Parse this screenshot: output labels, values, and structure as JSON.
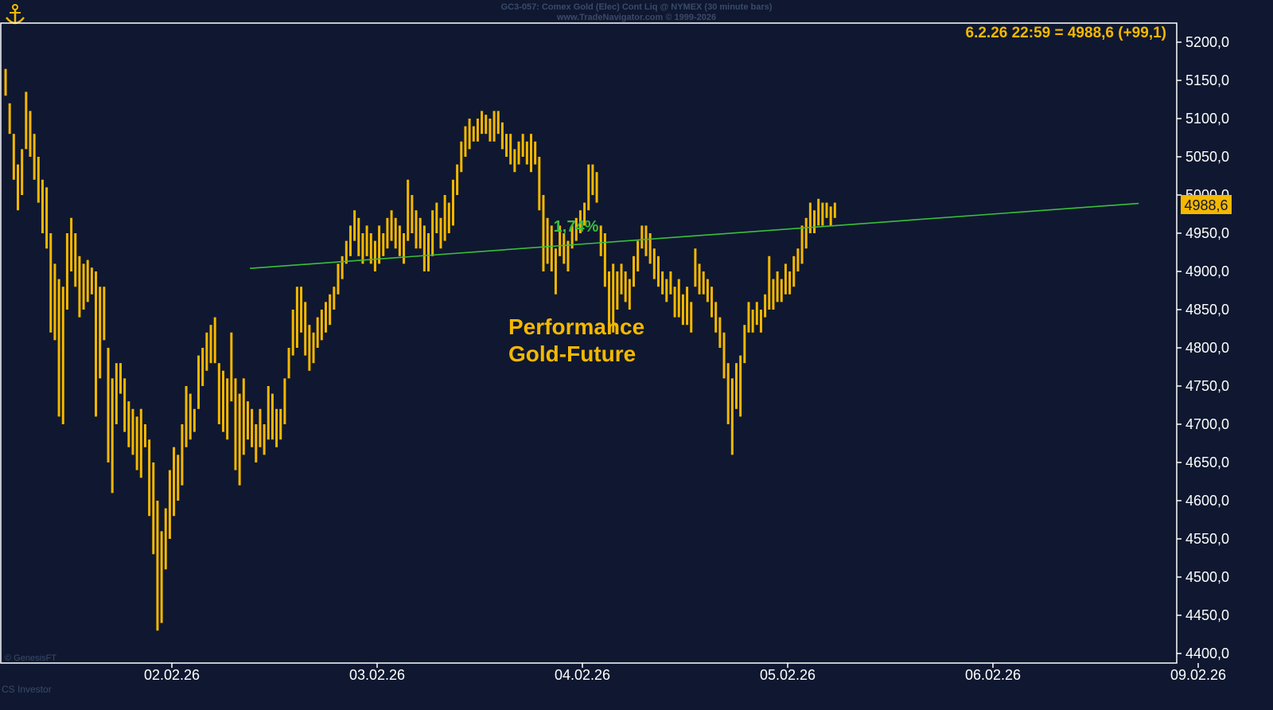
{
  "header": {
    "title": "GC3-057: Comex Gold (Elec) Cont Liq @ NYMEX (30 minute bars)",
    "subtitle": "www.TradeNavigator.com © 1999-2026"
  },
  "footer": {
    "watermark": "© GenesisFT",
    "brand": "CS Investor"
  },
  "colors": {
    "background": "#0f1830",
    "bars": "#f5b800",
    "trendline": "#3bbf3b",
    "axis": "#ffffff",
    "text": "#f5b800"
  },
  "chart_data": {
    "type": "ohlc",
    "title": "Performance Gold-Future",
    "title_lines": [
      "Performance",
      "Gold-Future"
    ],
    "last_label": "6.2.26 22:59 = 4988,6 (+99,1)",
    "last_value": 4988.6,
    "last_value_label": "4988,6",
    "ylim": [
      4400,
      5200
    ],
    "y_ticks": [
      4400,
      4450,
      4500,
      4550,
      4600,
      4650,
      4700,
      4750,
      4800,
      4850,
      4900,
      4950,
      5000,
      5050,
      5100,
      5150,
      5200
    ],
    "y_tick_labels": [
      "4400,0",
      "4450,0",
      "4500,0",
      "4550,0",
      "4600,0",
      "4650,0",
      "4700,0",
      "4750,0",
      "4800,0",
      "4850,0",
      "4900,0",
      "4950,0",
      "5000,0",
      "5050,0",
      "5100,0",
      "5150,0",
      "5200,0"
    ],
    "x_ticks": [
      "02.02.26",
      "03.02.26",
      "04.02.26",
      "05.02.26",
      "06.02.26",
      "09.02.26"
    ],
    "trendline": {
      "label": "1,74%",
      "start": {
        "x_day": 0.38,
        "value": 4904
      },
      "end": {
        "x_day": 4.71,
        "value": 4989
      }
    },
    "x_day_note_hidden": null,
    "bars": [
      [
        -0.81,
        5165,
        5130
      ],
      [
        -0.79,
        5120,
        5080
      ],
      [
        -0.77,
        5080,
        5020
      ],
      [
        -0.75,
        5040,
        4980
      ],
      [
        -0.73,
        5060,
        5000
      ],
      [
        -0.71,
        5135,
        5060
      ],
      [
        -0.69,
        5110,
        5050
      ],
      [
        -0.67,
        5080,
        5020
      ],
      [
        -0.65,
        5050,
        4990
      ],
      [
        -0.63,
        5020,
        4950
      ],
      [
        -0.61,
        5010,
        4930
      ],
      [
        -0.59,
        4950,
        4820
      ],
      [
        -0.57,
        4910,
        4810
      ],
      [
        -0.55,
        4890,
        4710
      ],
      [
        -0.53,
        4880,
        4700
      ],
      [
        -0.51,
        4950,
        4850
      ],
      [
        -0.49,
        4970,
        4900
      ],
      [
        -0.47,
        4950,
        4880
      ],
      [
        -0.45,
        4920,
        4840
      ],
      [
        -0.43,
        4910,
        4850
      ],
      [
        -0.41,
        4915,
        4860
      ],
      [
        -0.39,
        4905,
        4870
      ],
      [
        -0.37,
        4900,
        4710
      ],
      [
        -0.35,
        4880,
        4760
      ],
      [
        -0.33,
        4880,
        4810
      ],
      [
        -0.31,
        4800,
        4650
      ],
      [
        -0.29,
        4760,
        4610
      ],
      [
        -0.27,
        4780,
        4700
      ],
      [
        -0.25,
        4780,
        4740
      ],
      [
        -0.23,
        4760,
        4690
      ],
      [
        -0.21,
        4730,
        4670
      ],
      [
        -0.19,
        4720,
        4660
      ],
      [
        -0.17,
        4710,
        4640
      ],
      [
        -0.15,
        4720,
        4630
      ],
      [
        -0.13,
        4700,
        4670
      ],
      [
        -0.11,
        4680,
        4580
      ],
      [
        -0.09,
        4650,
        4530
      ],
      [
        -0.07,
        4600,
        4430
      ],
      [
        -0.05,
        4560,
        4440
      ],
      [
        -0.03,
        4590,
        4510
      ],
      [
        -0.01,
        4640,
        4550
      ],
      [
        0.01,
        4670,
        4580
      ],
      [
        0.03,
        4660,
        4600
      ],
      [
        0.05,
        4700,
        4620
      ],
      [
        0.07,
        4750,
        4670
      ],
      [
        0.09,
        4740,
        4680
      ],
      [
        0.11,
        4720,
        4690
      ],
      [
        0.13,
        4790,
        4720
      ],
      [
        0.15,
        4800,
        4750
      ],
      [
        0.17,
        4820,
        4770
      ],
      [
        0.19,
        4830,
        4780
      ],
      [
        0.21,
        4840,
        4780
      ],
      [
        0.23,
        4780,
        4700
      ],
      [
        0.25,
        4770,
        4690
      ],
      [
        0.27,
        4760,
        4680
      ],
      [
        0.29,
        4820,
        4730
      ],
      [
        0.31,
        4760,
        4640
      ],
      [
        0.33,
        4740,
        4620
      ],
      [
        0.35,
        4760,
        4660
      ],
      [
        0.37,
        4730,
        4680
      ],
      [
        0.39,
        4720,
        4670
      ],
      [
        0.41,
        4700,
        4650
      ],
      [
        0.43,
        4720,
        4670
      ],
      [
        0.45,
        4700,
        4660
      ],
      [
        0.47,
        4750,
        4680
      ],
      [
        0.49,
        4740,
        4680
      ],
      [
        0.51,
        4720,
        4670
      ],
      [
        0.53,
        4720,
        4680
      ],
      [
        0.55,
        4760,
        4700
      ],
      [
        0.57,
        4800,
        4760
      ],
      [
        0.59,
        4850,
        4790
      ],
      [
        0.61,
        4880,
        4800
      ],
      [
        0.63,
        4880,
        4820
      ],
      [
        0.65,
        4860,
        4790
      ],
      [
        0.67,
        4830,
        4770
      ],
      [
        0.69,
        4820,
        4780
      ],
      [
        0.71,
        4840,
        4800
      ],
      [
        0.73,
        4850,
        4810
      ],
      [
        0.75,
        4860,
        4820
      ],
      [
        0.77,
        4870,
        4830
      ],
      [
        0.79,
        4880,
        4850
      ],
      [
        0.81,
        4910,
        4870
      ],
      [
        0.83,
        4920,
        4890
      ],
      [
        0.85,
        4940,
        4910
      ],
      [
        0.87,
        4960,
        4920
      ],
      [
        0.89,
        4980,
        4940
      ],
      [
        0.91,
        4970,
        4920
      ],
      [
        0.93,
        4950,
        4910
      ],
      [
        0.95,
        4960,
        4920
      ],
      [
        0.97,
        4950,
        4910
      ],
      [
        0.99,
        4940,
        4900
      ],
      [
        1.01,
        4960,
        4910
      ],
      [
        1.03,
        4950,
        4920
      ],
      [
        1.05,
        4970,
        4930
      ],
      [
        1.07,
        4980,
        4940
      ],
      [
        1.09,
        4970,
        4930
      ],
      [
        1.11,
        4960,
        4920
      ],
      [
        1.13,
        4950,
        4910
      ],
      [
        1.15,
        5020,
        4940
      ],
      [
        1.17,
        5000,
        4950
      ],
      [
        1.19,
        4980,
        4930
      ],
      [
        1.21,
        4970,
        4930
      ],
      [
        1.23,
        4960,
        4900
      ],
      [
        1.25,
        4950,
        4900
      ],
      [
        1.27,
        4980,
        4920
      ],
      [
        1.29,
        4990,
        4950
      ],
      [
        1.31,
        4970,
        4930
      ],
      [
        1.33,
        5000,
        4940
      ],
      [
        1.35,
        4990,
        4950
      ],
      [
        1.37,
        5020,
        4960
      ],
      [
        1.39,
        5040,
        5000
      ],
      [
        1.41,
        5070,
        5030
      ],
      [
        1.43,
        5090,
        5050
      ],
      [
        1.45,
        5100,
        5060
      ],
      [
        1.47,
        5090,
        5070
      ],
      [
        1.49,
        5100,
        5070
      ],
      [
        1.51,
        5110,
        5080
      ],
      [
        1.53,
        5105,
        5080
      ],
      [
        1.55,
        5100,
        5070
      ],
      [
        1.57,
        5110,
        5070
      ],
      [
        1.59,
        5110,
        5080
      ],
      [
        1.61,
        5095,
        5060
      ],
      [
        1.63,
        5080,
        5050
      ],
      [
        1.65,
        5080,
        5040
      ],
      [
        1.67,
        5060,
        5030
      ],
      [
        1.69,
        5070,
        5040
      ],
      [
        1.71,
        5080,
        5050
      ],
      [
        1.73,
        5070,
        5040
      ],
      [
        1.75,
        5080,
        5030
      ],
      [
        1.77,
        5070,
        5040
      ],
      [
        1.79,
        5050,
        4980
      ],
      [
        1.81,
        5000,
        4900
      ],
      [
        1.83,
        4970,
        4910
      ],
      [
        1.85,
        4960,
        4900
      ],
      [
        1.87,
        4930,
        4870
      ],
      [
        1.89,
        4960,
        4920
      ],
      [
        1.91,
        4950,
        4910
      ],
      [
        1.93,
        4940,
        4900
      ],
      [
        1.95,
        4960,
        4930
      ],
      [
        1.97,
        4970,
        4940
      ],
      [
        1.99,
        4980,
        4950
      ],
      [
        2.01,
        4990,
        4960
      ],
      [
        2.03,
        5040,
        4980
      ],
      [
        2.05,
        5040,
        5000
      ],
      [
        2.07,
        5030,
        4990
      ],
      [
        2.09,
        4960,
        4920
      ],
      [
        2.11,
        4950,
        4880
      ],
      [
        2.13,
        4900,
        4820
      ],
      [
        2.15,
        4910,
        4820
      ],
      [
        2.17,
        4900,
        4850
      ],
      [
        2.19,
        4910,
        4870
      ],
      [
        2.21,
        4900,
        4860
      ],
      [
        2.23,
        4890,
        4850
      ],
      [
        2.25,
        4920,
        4880
      ],
      [
        2.27,
        4940,
        4900
      ],
      [
        2.29,
        4960,
        4930
      ],
      [
        2.31,
        4960,
        4920
      ],
      [
        2.33,
        4950,
        4910
      ],
      [
        2.35,
        4930,
        4890
      ],
      [
        2.37,
        4920,
        4880
      ],
      [
        2.39,
        4900,
        4870
      ],
      [
        2.41,
        4890,
        4860
      ],
      [
        2.43,
        4900,
        4870
      ],
      [
        2.45,
        4880,
        4840
      ],
      [
        2.47,
        4890,
        4840
      ],
      [
        2.49,
        4870,
        4830
      ],
      [
        2.51,
        4880,
        4830
      ],
      [
        2.53,
        4860,
        4820
      ],
      [
        2.55,
        4930,
        4880
      ],
      [
        2.57,
        4910,
        4870
      ],
      [
        2.59,
        4900,
        4870
      ],
      [
        2.61,
        4890,
        4860
      ],
      [
        2.63,
        4880,
        4840
      ],
      [
        2.65,
        4860,
        4820
      ],
      [
        2.67,
        4840,
        4800
      ],
      [
        2.69,
        4820,
        4760
      ],
      [
        2.71,
        4780,
        4700
      ],
      [
        2.73,
        4760,
        4660
      ],
      [
        2.75,
        4780,
        4720
      ],
      [
        2.77,
        4790,
        4710
      ],
      [
        2.79,
        4830,
        4780
      ],
      [
        2.81,
        4860,
        4820
      ],
      [
        2.83,
        4850,
        4820
      ],
      [
        2.85,
        4860,
        4830
      ],
      [
        2.87,
        4850,
        4820
      ],
      [
        2.89,
        4870,
        4840
      ],
      [
        2.91,
        4920,
        4850
      ],
      [
        2.93,
        4890,
        4850
      ],
      [
        2.95,
        4900,
        4860
      ],
      [
        2.97,
        4890,
        4860
      ],
      [
        2.99,
        4910,
        4870
      ],
      [
        3.01,
        4900,
        4870
      ],
      [
        3.03,
        4920,
        4880
      ],
      [
        3.05,
        4930,
        4900
      ],
      [
        3.07,
        4960,
        4910
      ],
      [
        3.09,
        4970,
        4930
      ],
      [
        3.11,
        4990,
        4950
      ],
      [
        3.13,
        4980,
        4950
      ],
      [
        3.15,
        4995,
        4960
      ],
      [
        3.17,
        4990,
        4960
      ],
      [
        3.19,
        4990,
        4970
      ],
      [
        3.21,
        4985,
        4960
      ],
      [
        3.23,
        4990,
        4970
      ]
    ]
  }
}
